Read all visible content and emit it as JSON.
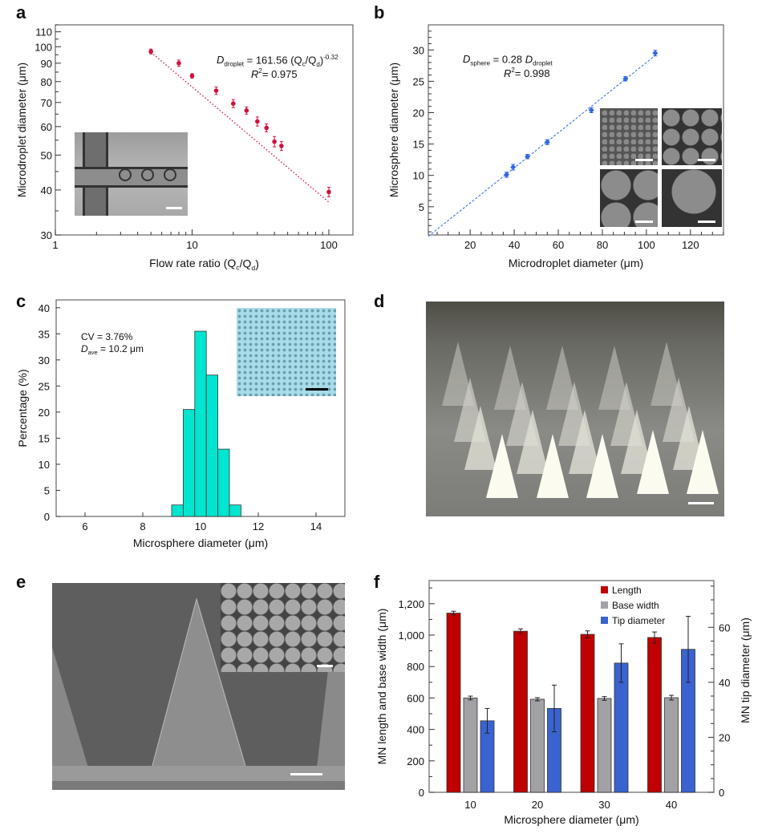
{
  "panel_letters": {
    "a": "a",
    "b": "b",
    "c": "c",
    "d": "d",
    "e": "e",
    "f": "f"
  },
  "chart_data": [
    {
      "id": "a",
      "type": "scatter",
      "xscale": "log",
      "yscale": "log",
      "xlabel": "Flow rate ratio (Q_c/Q_d)",
      "ylabel": "Microdroplet diameter (μm)",
      "xlim": [
        1,
        150
      ],
      "ylim": [
        30,
        115
      ],
      "xticks": [
        1,
        10,
        100
      ],
      "xtick_labels": [
        "1",
        "10",
        "100"
      ],
      "yticks": [
        30,
        40,
        50,
        60,
        70,
        80,
        90,
        100,
        110
      ],
      "ytick_labels": [
        "30",
        "40",
        "50",
        "60",
        "70",
        "80",
        "90",
        "100",
        "110"
      ],
      "color": "#d0103a",
      "x": [
        5,
        8,
        10,
        15,
        20,
        25,
        30,
        35,
        40,
        45,
        100
      ],
      "y": [
        97,
        90,
        83,
        75.5,
        69.5,
        66.5,
        62,
        59.5,
        54.5,
        53,
        39.5
      ],
      "yerr": [
        1.5,
        1.8,
        1.2,
        1.8,
        1.8,
        1.5,
        1.8,
        1.5,
        1.8,
        1.5,
        1.2
      ],
      "fit": {
        "a": 161.56,
        "b": -0.32,
        "x_range": [
          5,
          100
        ],
        "style": "dotted"
      },
      "annotation": {
        "lhs": "D",
        "lhs_sub": "droplet",
        "rhs": "= 161.56 (Q",
        "q1_sub": "c",
        "mid": "/Q",
        "q2_sub": "d",
        "close": ")",
        "exp": "-0.32",
        "r2_label": "R",
        "r2_sup": "2",
        "r2_value": "= 0.975"
      },
      "inset": "micrograph of flow-focusing microfluidic droplet generator"
    },
    {
      "id": "b",
      "type": "scatter",
      "xlabel": "Microdroplet diameter (μm)",
      "ylabel": "Microsphere diameter (μm)",
      "xlim": [
        1,
        135
      ],
      "ylim": [
        0.5,
        34
      ],
      "xticks": [
        20,
        40,
        60,
        80,
        100,
        120
      ],
      "xtick_labels": [
        "20",
        "40",
        "60",
        "80",
        "100",
        "120"
      ],
      "yticks": [
        5,
        10,
        15,
        20,
        25,
        30
      ],
      "ytick_labels": [
        "5",
        "10",
        "15",
        "20",
        "25",
        "30"
      ],
      "color": "#2f66e0",
      "x": [
        36.5,
        39.5,
        46,
        55,
        75,
        90.5,
        104
      ],
      "y": [
        10.1,
        11.3,
        13.0,
        15.3,
        20.4,
        25.4,
        29.5
      ],
      "yerr": [
        0.4,
        0.45,
        0.35,
        0.4,
        0.4,
        0.35,
        0.45
      ],
      "fit": {
        "slope": 0.28,
        "x_range": [
          1,
          104
        ],
        "style": "dashed"
      },
      "annotation": {
        "lhs": "D",
        "lhs_sub": "sphere",
        "rhs": "= 0.28 ",
        "rhs2": "D",
        "rhs_sub": "droplet",
        "r2_label": "R",
        "r2_sup": "2",
        "r2_value": "= 0.998"
      },
      "inset": "four SEM images of microspheres of increasing size"
    },
    {
      "id": "c",
      "type": "bar",
      "subtype": "histogram",
      "xlabel": "Microsphere diameter (μm)",
      "ylabel": "Percentage (%)",
      "xlim": [
        5,
        15
      ],
      "ylim": [
        0,
        40
      ],
      "xticks": [
        6,
        8,
        10,
        12,
        14
      ],
      "xtick_labels": [
        "6",
        "8",
        "10",
        "12",
        "14"
      ],
      "yticks": [
        0,
        5,
        10,
        15,
        20,
        25,
        30,
        35,
        40
      ],
      "ytick_labels": [
        "0",
        "5",
        "10",
        "15",
        "20",
        "25",
        "30",
        "35",
        "40"
      ],
      "color": "#00e5cf",
      "bin_edges": [
        9.0,
        9.4,
        9.8,
        10.2,
        10.6,
        11.0,
        11.4
      ],
      "values": [
        2.2,
        20.5,
        35.5,
        27.1,
        12.9,
        2.2
      ],
      "annotation": {
        "cv": "CV = 3.76%",
        "dave_label": "D",
        "dave_sub": "ave",
        "dave_value": "= 10.2 μm"
      },
      "inset": "optical image of microsphere monolayer"
    },
    {
      "id": "f",
      "type": "bar",
      "subtype": "grouped-dual-axis",
      "xlabel": "Microsphere diameter (μm)",
      "ylabel": "MN length and base width (μm)",
      "ylabel_right": "MN tip diameter (μm)",
      "categories": [
        "10",
        "20",
        "30",
        "40"
      ],
      "ylim": [
        0,
        1347
      ],
      "ylim_right": [
        0,
        77
      ],
      "yticks": [
        0,
        200,
        400,
        600,
        800,
        1000,
        1200
      ],
      "ytick_labels": [
        "0",
        "200",
        "400",
        "600",
        "800",
        "1,000",
        "1,200"
      ],
      "yticks_right": [
        0,
        20,
        40,
        60
      ],
      "ytick_labels_right": [
        "0",
        "20",
        "40",
        "60"
      ],
      "legend_position": "top-right",
      "series": [
        {
          "name": "Length",
          "axis": "left",
          "color": "#c00000",
          "values": [
            1140,
            1025,
            1005,
            985
          ],
          "err": [
            12,
            15,
            22,
            35
          ]
        },
        {
          "name": "Base width",
          "axis": "left",
          "color": "#a2a2a6",
          "values": [
            600,
            592,
            597,
            602
          ],
          "err": [
            12,
            10,
            12,
            15
          ]
        },
        {
          "name": "Tip diameter",
          "axis": "right",
          "color": "#3a62d0",
          "values": [
            26,
            30.5,
            47,
            52
          ],
          "err": [
            4.5,
            8.5,
            7,
            12
          ]
        }
      ]
    }
  ],
  "images": {
    "d": "optical photo of microneedle array",
    "e": "SEM image of microneedles with microsphere inset"
  }
}
